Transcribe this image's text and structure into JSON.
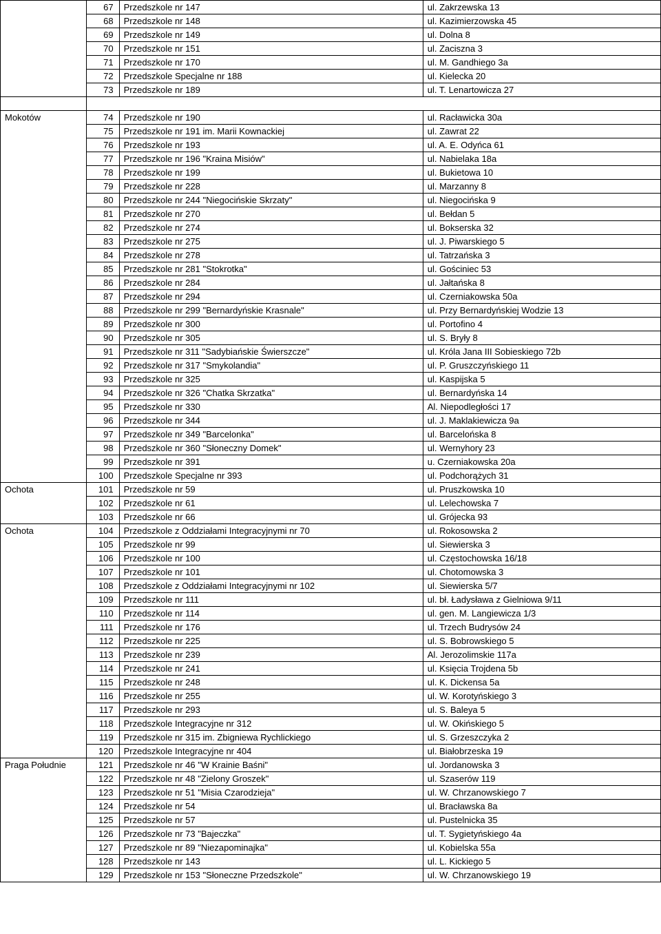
{
  "rows": [
    {
      "district": "",
      "num": "67",
      "name": "Przedszkole nr 147",
      "addr": "ul. Zakrzewska 13"
    },
    {
      "district": "",
      "num": "68",
      "name": "Przedszkole nr 148",
      "addr": "ul. Kazimierzowska 45"
    },
    {
      "district": "",
      "num": "69",
      "name": "Przedszkole nr 149",
      "addr": "ul. Dolna 8"
    },
    {
      "district": "",
      "num": "70",
      "name": "Przedszkole nr 151",
      "addr": "ul. Zaciszna 3"
    },
    {
      "district": "",
      "num": "71",
      "name": "Przedszkole nr 170",
      "addr": "ul. M. Gandhiego 3a"
    },
    {
      "district": "",
      "num": "72",
      "name": "Przedszkole Specjalne nr 188",
      "addr": "ul. Kielecka 20"
    },
    {
      "district": "",
      "num": "73",
      "name": "Przedszkole nr 189",
      "addr": "ul. T. Lenartowicza 27"
    },
    {
      "spacer": true
    },
    {
      "district": "Mokotów",
      "num": "74",
      "name": "Przedszkole nr 190",
      "addr": "ul. Racławicka 30a"
    },
    {
      "district": "",
      "num": "75",
      "name": "Przedszkole nr 191 im. Marii Kownackiej",
      "addr": "ul. Zawrat 22"
    },
    {
      "district": "",
      "num": "76",
      "name": "Przedszkole nr 193",
      "addr": "ul. A. E. Odyńca 61"
    },
    {
      "district": "",
      "num": "77",
      "name": "Przedszkole nr 196 \"Kraina Misiów\"",
      "addr": "ul. Nabielaka 18a"
    },
    {
      "district": "",
      "num": "78",
      "name": "Przedszkole nr 199",
      "addr": "ul. Bukietowa 10"
    },
    {
      "district": "",
      "num": "79",
      "name": "Przedszkole nr 228",
      "addr": "ul. Marzanny 8"
    },
    {
      "district": "",
      "num": "80",
      "name": "Przedszkole nr 244 \"Niegocińskie Skrzaty\"",
      "addr": "ul. Niegocińska 9"
    },
    {
      "district": "",
      "num": "81",
      "name": "Przedszkole nr 270",
      "addr": "ul. Bełdan 5"
    },
    {
      "district": "",
      "num": "82",
      "name": "Przedszkole nr 274",
      "addr": "ul. Bokserska 32"
    },
    {
      "district": "",
      "num": "83",
      "name": "Przedszkole nr 275",
      "addr": "ul. J. Piwarskiego 5"
    },
    {
      "district": "",
      "num": "84",
      "name": "Przedszkole nr 278",
      "addr": "ul. Tatrzańska 3"
    },
    {
      "district": "",
      "num": "85",
      "name": "Przedszkole nr 281 \"Stokrotka\"",
      "addr": "ul. Gościniec 53"
    },
    {
      "district": "",
      "num": "86",
      "name": "Przedszkole nr 284",
      "addr": "ul. Jałtańska 8"
    },
    {
      "district": "",
      "num": "87",
      "name": "Przedszkole nr 294",
      "addr": "ul. Czerniakowska 50a"
    },
    {
      "district": "",
      "num": "88",
      "name": "Przedszkole nr 299 \"Bernardyńskie Krasnale\"",
      "addr": "ul. Przy Bernardyńskiej Wodzie 13"
    },
    {
      "district": "",
      "num": "89",
      "name": "Przedszkole nr 300",
      "addr": "ul. Portofino 4"
    },
    {
      "district": "",
      "num": "90",
      "name": "Przedszkole nr 305",
      "addr": "ul. S. Bryły 8"
    },
    {
      "district": "",
      "num": "91",
      "name": "Przedszkole nr 311 \"Sadybiańskie Świerszcze\"",
      "addr": "ul. Króla Jana III Sobieskiego 72b"
    },
    {
      "district": "",
      "num": "92",
      "name": "Przedszkole nr 317 \"Smykolandia\"",
      "addr": "ul. P. Gruszczyńskiego 11"
    },
    {
      "district": "",
      "num": "93",
      "name": "Przedszkole nr 325",
      "addr": "ul. Kaspijska 5"
    },
    {
      "district": "",
      "num": "94",
      "name": "Przedszkole nr 326 \"Chatka Skrzatka\"",
      "addr": "ul. Bernardyńska 14"
    },
    {
      "district": "",
      "num": "95",
      "name": "Przedszkole nr 330",
      "addr": "Al. Niepodległości 17"
    },
    {
      "district": "",
      "num": "96",
      "name": "Przedszkole nr 344",
      "addr": "ul. J. Maklakiewicza 9a"
    },
    {
      "district": "",
      "num": "97",
      "name": "Przedszkole nr 349 \"Barcelonka\"",
      "addr": "ul. Barcelońska 8"
    },
    {
      "district": "",
      "num": "98",
      "name": "Przedszkole nr 360 \"Słoneczny Domek\"",
      "addr": "ul. Wernyhory 23"
    },
    {
      "district": "",
      "num": "99",
      "name": "Przedszkole nr 391",
      "addr": "u. Czerniakowska 20a"
    },
    {
      "district": "",
      "num": "100",
      "name": "Przedszkole Specjalne nr 393",
      "addr": "ul. Podchorążych 31"
    },
    {
      "district": "Ochota",
      "num": "101",
      "name": "Przedszkole nr 59",
      "addr": "ul. Pruszkowska 10"
    },
    {
      "district": "",
      "num": "102",
      "name": "Przedszkole nr 61",
      "addr": "ul. Lelechowska 7"
    },
    {
      "district": "",
      "num": "103",
      "name": "Przedszkole nr 66",
      "addr": "ul. Grójecka 93"
    },
    {
      "district": "Ochota",
      "num": "104",
      "name": "Przedszkole z Oddziałami Integracyjnymi nr 70",
      "addr": "ul. Rokosowska 2"
    },
    {
      "district": "",
      "num": "105",
      "name": "Przedszkole nr 99",
      "addr": "ul. Siewierska 3"
    },
    {
      "district": "",
      "num": "106",
      "name": "Przedszkole nr 100",
      "addr": "ul. Częstochowska 16/18"
    },
    {
      "district": "",
      "num": "107",
      "name": "Przedszkole nr 101",
      "addr": "ul. Chotomowska 3"
    },
    {
      "district": "",
      "num": "108",
      "name": "Przedszkole z Oddziałami Integracyjnymi nr 102",
      "addr": "ul. Siewierska 5/7"
    },
    {
      "district": "",
      "num": "109",
      "name": "Przedszkole nr 111",
      "addr": "ul. bł. Ładysława z Gielniowa 9/11"
    },
    {
      "district": "",
      "num": "110",
      "name": "Przedszkole nr 114",
      "addr": "ul. gen. M. Langiewicza 1/3"
    },
    {
      "district": "",
      "num": "111",
      "name": "Przedszkole nr 176",
      "addr": "ul. Trzech Budrysów 24"
    },
    {
      "district": "",
      "num": "112",
      "name": "Przedszkole nr 225",
      "addr": "ul. S. Bobrowskiego 5"
    },
    {
      "district": "",
      "num": "113",
      "name": "Przedszkole nr 239",
      "addr": "Al. Jerozolimskie 117a"
    },
    {
      "district": "",
      "num": "114",
      "name": "Przedszkole nr 241",
      "addr": "ul. Księcia Trojdena 5b"
    },
    {
      "district": "",
      "num": "115",
      "name": "Przedszkole nr 248",
      "addr": "ul. K. Dickensa 5a"
    },
    {
      "district": "",
      "num": "116",
      "name": "Przedszkole nr 255",
      "addr": "ul. W. Korotyńskiego 3"
    },
    {
      "district": "",
      "num": "117",
      "name": "Przedszkole nr 293",
      "addr": "ul. S. Baleya 5"
    },
    {
      "district": "",
      "num": "118",
      "name": "Przedszkole Integracyjne nr 312",
      "addr": "ul. W. Okińskiego 5"
    },
    {
      "district": "",
      "num": "119",
      "name": "Przedszkole nr 315 im. Zbigniewa Rychlickiego",
      "addr": "ul. S. Grzeszczyka 2"
    },
    {
      "district": "",
      "num": "120",
      "name": "Przedszkole Integracyjne nr 404",
      "addr": "ul. Białobrzeska 19"
    },
    {
      "district": "Praga Południe",
      "num": "121",
      "name": "Przedszkole nr 46 \"W Krainie Baśni\"",
      "addr": "ul. Jordanowska 3"
    },
    {
      "district": "",
      "num": "122",
      "name": "Przedszkole nr 48 \"Zielony Groszek\"",
      "addr": "ul. Szaserów 119"
    },
    {
      "district": "",
      "num": "123",
      "name": "Przedszkole nr 51 \"Misia Czarodzieja\"",
      "addr": "ul. W. Chrzanowskiego 7"
    },
    {
      "district": "",
      "num": "124",
      "name": "Przedszkole nr 54",
      "addr": "ul. Bracławska 8a"
    },
    {
      "district": "",
      "num": "125",
      "name": "Przedszkole nr 57",
      "addr": "ul. Pustelnicka 35"
    },
    {
      "district": "",
      "num": "126",
      "name": "Przedszkole nr 73 \"Bajeczka\"",
      "addr": "ul. T. Sygietyńskiego 4a"
    },
    {
      "district": "",
      "num": "127",
      "name": "Przedszkole nr 89 \"Niezapominajka\"",
      "addr": "ul. Kobielska 55a"
    },
    {
      "district": "",
      "num": "128",
      "name": "Przedszkole nr 143",
      "addr": "ul. L. Kickiego 5"
    },
    {
      "district": "",
      "num": "129",
      "name": "Przedszkole nr 153 \"Słoneczne Przedszkole\"",
      "addr": "ul. W. Chrzanowskiego 19"
    }
  ]
}
